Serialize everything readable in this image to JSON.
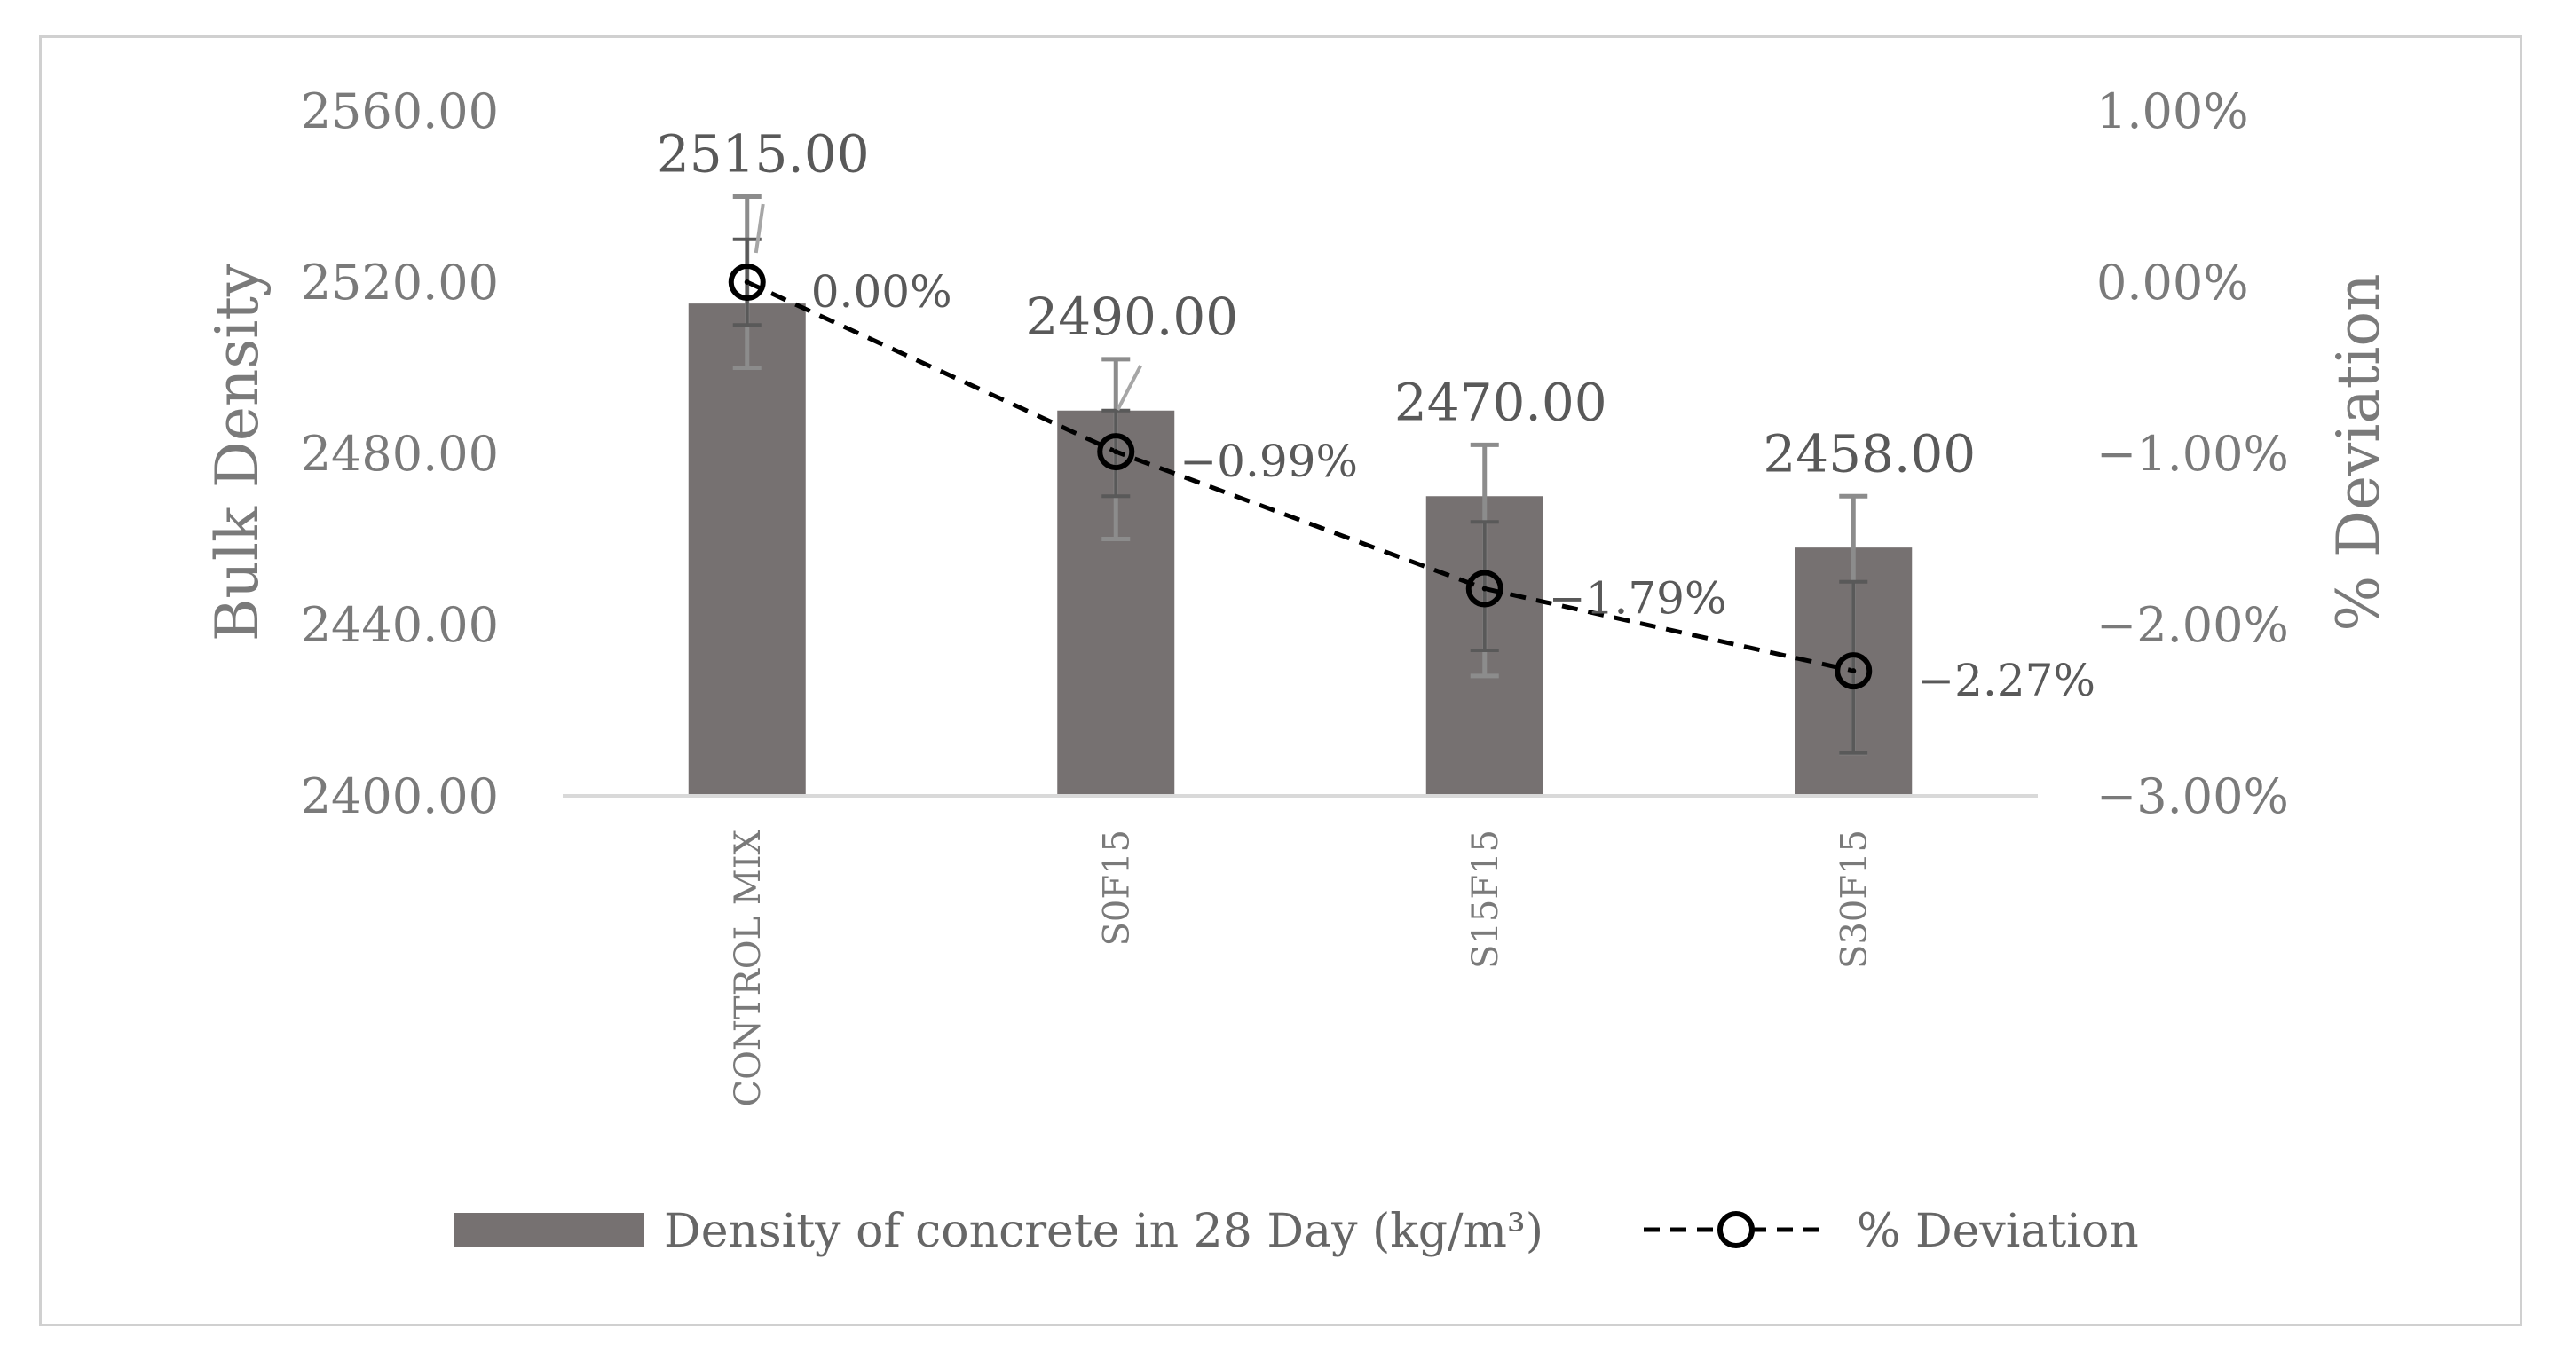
{
  "chart_data": {
    "type": "bar",
    "title": "",
    "categories": [
      "CONTROL MIX",
      "S0F15",
      "S15F15",
      "S30F15"
    ],
    "series": [
      {
        "name": "Density of concrete in 28 Day (kg/m³)",
        "type": "bar",
        "axis": "left",
        "values": [
          2515.0,
          2490.0,
          2470.0,
          2458.0
        ],
        "labels": [
          "2515.00",
          "2490.00",
          "2470.00",
          "2458.00"
        ],
        "error_low": [
          2500,
          2460,
          2428,
          2410
        ],
        "error_high": [
          2540,
          2502,
          2482,
          2470
        ],
        "color": "#767171"
      },
      {
        "name": "% Deviation",
        "type": "line",
        "axis": "right",
        "values": [
          0.0,
          -0.99,
          -1.79,
          -2.27
        ],
        "labels": [
          "0.00%",
          "−0.99%",
          "−1.79%",
          "−2.27%"
        ],
        "error_low": [
          -0.25,
          -0.75,
          -1.4,
          -1.75
        ],
        "error_high": [
          0.25,
          -1.25,
          -2.15,
          -2.75
        ],
        "color": "#000000",
        "style": "dashed",
        "marker": "open-circle"
      }
    ],
    "ylabel": "Bulk Density",
    "ylim": [
      2400,
      2560
    ],
    "yticks": [
      "2400.00",
      "2440.00",
      "2480.00",
      "2520.00",
      "2560.00"
    ],
    "y2label": "% Deviation",
    "y2lim": [
      -3,
      1
    ],
    "y2ticks": [
      "−3.00%",
      "−2.00%",
      "−1.00%",
      "0.00%",
      "1.00%"
    ],
    "grid": false,
    "legend_position": "bottom"
  }
}
